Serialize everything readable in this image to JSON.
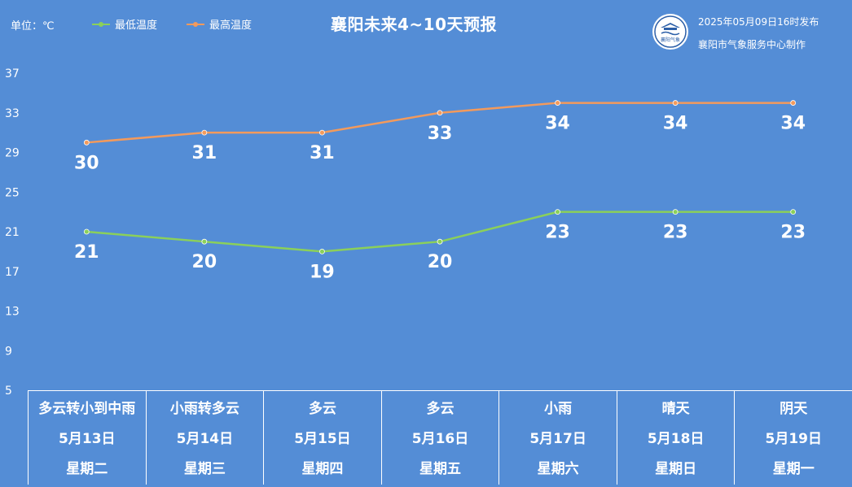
{
  "header": {
    "unit": "单位：℃",
    "title": "襄阳未来4~10天预报",
    "publish_time": "2025年05月09日16时发布",
    "producer": "襄阳市气象服务中心制作",
    "logo_text": "襄阳气象"
  },
  "colors": {
    "background": "#548dd6",
    "min_series": "#8bd05a",
    "max_series": "#f39a5c",
    "text": "#ffffff"
  },
  "chart_data": {
    "type": "line",
    "title": "襄阳未来4~10天预报",
    "ylabel": "单位：℃",
    "ylim": [
      5,
      37
    ],
    "yticks": [
      5,
      9,
      13,
      17,
      21,
      25,
      29,
      33,
      37
    ],
    "grid": false,
    "legend_position": "top-left",
    "categories": [
      "5月13日",
      "5月14日",
      "5月15日",
      "5月16日",
      "5月17日",
      "5月18日",
      "5月19日"
    ],
    "series": [
      {
        "name": "最低温度",
        "color": "#8bd05a",
        "values": [
          21,
          20,
          19,
          20,
          23,
          23,
          23
        ]
      },
      {
        "name": "最高温度",
        "color": "#f39a5c",
        "values": [
          30,
          31,
          31,
          33,
          34,
          34,
          34
        ]
      }
    ]
  },
  "days": [
    {
      "weather": "多云转小到中雨",
      "date": "5月13日",
      "weekday": "星期二"
    },
    {
      "weather": "小雨转多云",
      "date": "5月14日",
      "weekday": "星期三"
    },
    {
      "weather": "多云",
      "date": "5月15日",
      "weekday": "星期四"
    },
    {
      "weather": "多云",
      "date": "5月16日",
      "weekday": "星期五"
    },
    {
      "weather": "小雨",
      "date": "5月17日",
      "weekday": "星期六"
    },
    {
      "weather": "晴天",
      "date": "5月18日",
      "weekday": "星期日"
    },
    {
      "weather": "阴天",
      "date": "5月19日",
      "weekday": "星期一"
    }
  ]
}
